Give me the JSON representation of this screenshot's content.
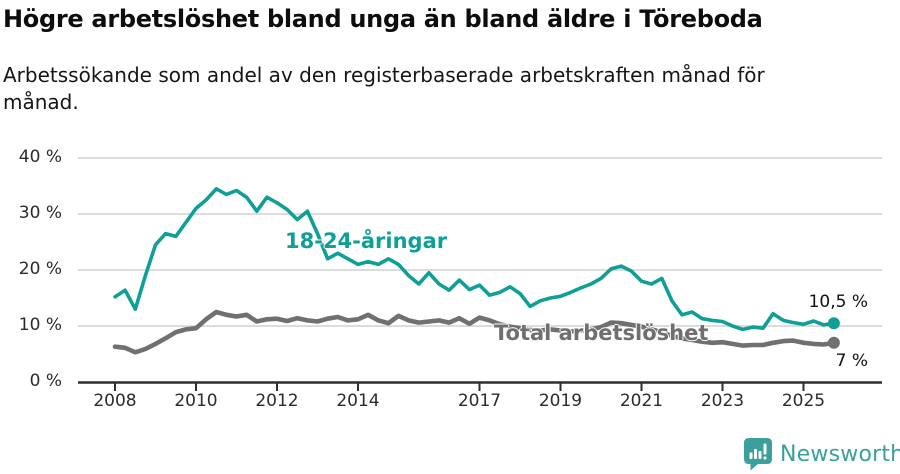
{
  "header": {
    "title": "Högre arbetslöshet bland unga än bland äldre i Töreboda",
    "subtitle": "Arbetssökande som andel av den registerbaserade arbetskraften månad för månad."
  },
  "footer": {
    "brand": "Newsworthy",
    "brand_color": "#3d9e9e",
    "logo_icon": "speech-bubble-bar-chart-icon"
  },
  "colors": {
    "youth_line": "#0f9f97",
    "total_line": "#707070",
    "gridline": "#dcdcdc",
    "axis": "#2e2e2e",
    "text": "#161616"
  },
  "chart_data": {
    "type": "line",
    "title": "Högre arbetslöshet bland unga än bland äldre i Töreboda",
    "subtitle": "Arbetssökande som andel av den registerbaserade arbetskraften månad för månad.",
    "grid": "horizontal",
    "legend_position": "inline-labels",
    "x_axis": {
      "ticks": [
        2008,
        2010,
        2012,
        2014,
        2017,
        2019,
        2021,
        2023,
        2025
      ],
      "tick_labels": [
        "2008",
        "2010",
        "2012",
        "2014",
        "2017",
        "2019",
        "2021",
        "2023",
        "2025"
      ],
      "range": [
        2007.1,
        2027.0
      ]
    },
    "y_axis": {
      "ticks": [
        0,
        10,
        20,
        30,
        40
      ],
      "tick_labels": [
        "0 %",
        "10 %",
        "20 %",
        "30 %",
        "40 %"
      ],
      "range": [
        0,
        40
      ],
      "unit": "%"
    },
    "series": [
      {
        "name": "18-24-åringar",
        "color": "#0f9f97",
        "start_year": 2008.0,
        "step_years": 0.25,
        "end_label": "10,5 %",
        "end_value": 10.5,
        "values": [
          15.2,
          16.4,
          13.0,
          19.0,
          24.5,
          26.5,
          26.0,
          28.5,
          31.0,
          32.5,
          34.5,
          33.5,
          34.2,
          33.0,
          30.5,
          33.0,
          32.0,
          30.8,
          29.0,
          30.5,
          26.5,
          22.0,
          23.0,
          22.0,
          21.0,
          21.5,
          21.0,
          22.0,
          21.0,
          19.0,
          17.5,
          19.5,
          17.5,
          16.4,
          18.2,
          16.5,
          17.3,
          15.5,
          16.0,
          17.0,
          15.8,
          13.5,
          14.5,
          15.0,
          15.3,
          16.0,
          16.8,
          17.5,
          18.5,
          20.2,
          20.7,
          19.8,
          18.0,
          17.5,
          18.5,
          14.5,
          12.0,
          12.5,
          11.3,
          11.0,
          10.8,
          10.0,
          9.4,
          9.8,
          9.6,
          12.2,
          11.0,
          10.6,
          10.3,
          10.9,
          10.2,
          10.5
        ]
      },
      {
        "name": "Total arbetslöshet",
        "color": "#707070",
        "start_year": 2008.0,
        "step_years": 0.25,
        "end_label": "7 %",
        "end_value": 7.0,
        "values": [
          6.3,
          6.1,
          5.3,
          5.9,
          6.8,
          7.8,
          8.9,
          9.4,
          9.6,
          11.2,
          12.5,
          12.0,
          11.7,
          12.0,
          10.8,
          11.2,
          11.3,
          10.9,
          11.4,
          11.0,
          10.8,
          11.3,
          11.6,
          11.0,
          11.2,
          12.0,
          11.0,
          10.5,
          11.8,
          11.0,
          10.6,
          10.8,
          11.0,
          10.6,
          11.4,
          10.4,
          11.5,
          11.0,
          10.3,
          9.9,
          9.6,
          9.3,
          9.2,
          9.4,
          9.2,
          9.0,
          9.2,
          9.4,
          9.8,
          10.6,
          10.5,
          10.2,
          9.9,
          9.4,
          8.9,
          8.2,
          7.8,
          7.5,
          7.2,
          7.0,
          7.1,
          6.8,
          6.5,
          6.6,
          6.6,
          7.0,
          7.3,
          7.4,
          7.0,
          6.8,
          6.7,
          7.0
        ]
      }
    ]
  }
}
